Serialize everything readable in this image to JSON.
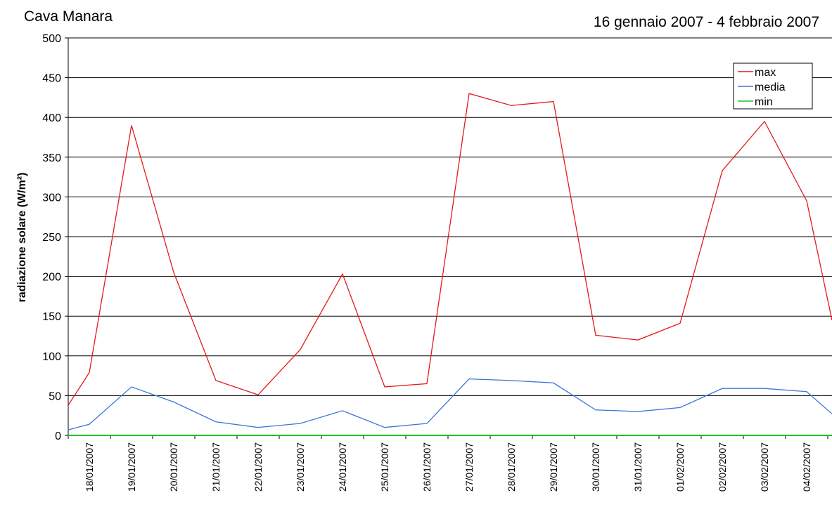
{
  "chart_data": {
    "type": "line",
    "title": "Cava Manara",
    "subtitle": "16 gennaio 2007 - 4 febbraio 2007",
    "y_label": "radiazione solare (W/m²)",
    "categories": [
      null,
      "18/01/2007",
      "19/01/2007",
      "20/01/2007",
      "21/01/2007",
      "22/01/2007",
      "23/01/2007",
      "24/01/2007",
      "25/01/2007",
      "26/01/2007",
      "27/01/2007",
      "28/01/2007",
      "29/01/2007",
      "30/01/2007",
      "31/01/2007",
      "01/02/2007",
      "02/02/2007",
      "03/02/2007",
      "04/02/2007",
      null
    ],
    "series": [
      {
        "name": "max",
        "color": "#e31a1c",
        "values": [
          38,
          79,
          390,
          205,
          69,
          51,
          108,
          203,
          61,
          65,
          430,
          415,
          420,
          126,
          120,
          141,
          333,
          395,
          295,
          145
        ]
      },
      {
        "name": "media",
        "color": "#3a76d8",
        "values": [
          7,
          14,
          61,
          42,
          17,
          10,
          15,
          31,
          10,
          15,
          71,
          69,
          66,
          32,
          30,
          35,
          59,
          59,
          55,
          27
        ]
      },
      {
        "name": "min",
        "color": "#22c022",
        "values": [
          0,
          0,
          0,
          0,
          0,
          0,
          0,
          0,
          0,
          0,
          0,
          0,
          0,
          0,
          0,
          0,
          0,
          0,
          0,
          0
        ]
      }
    ],
    "ylim": [
      0,
      500
    ],
    "yticks": [
      0,
      50,
      100,
      150,
      200,
      250,
      300,
      350,
      400,
      450,
      500
    ],
    "grid": true,
    "legend": "top-right"
  }
}
